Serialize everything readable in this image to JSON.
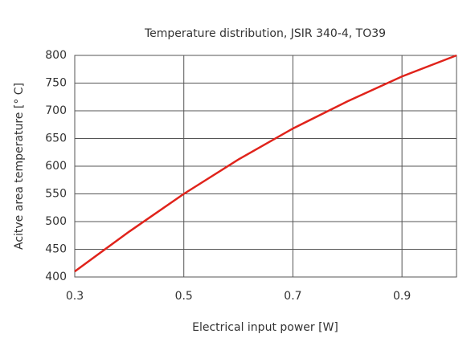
{
  "chart_data": {
    "type": "line",
    "title": "Temperature distribution, JSIR 340-4, TO39",
    "x_label": "Electrical input power [W]",
    "y_label": "Acitve area temperature [° C]",
    "x": [
      0.3,
      0.4,
      0.5,
      0.6,
      0.7,
      0.8,
      0.9,
      1.0
    ],
    "series": [
      {
        "name": "Temperature",
        "color": "#e0231b",
        "values": [
          410,
          482,
          550,
          612,
          668,
          717,
          762,
          800
        ]
      }
    ],
    "xlim": [
      0.3,
      1.0
    ],
    "xticks": [
      0.3,
      0.5,
      0.7,
      0.9
    ],
    "ylim": [
      400,
      800
    ],
    "yticks": [
      400,
      450,
      500,
      550,
      600,
      650,
      700,
      750,
      800
    ],
    "grid": true
  }
}
